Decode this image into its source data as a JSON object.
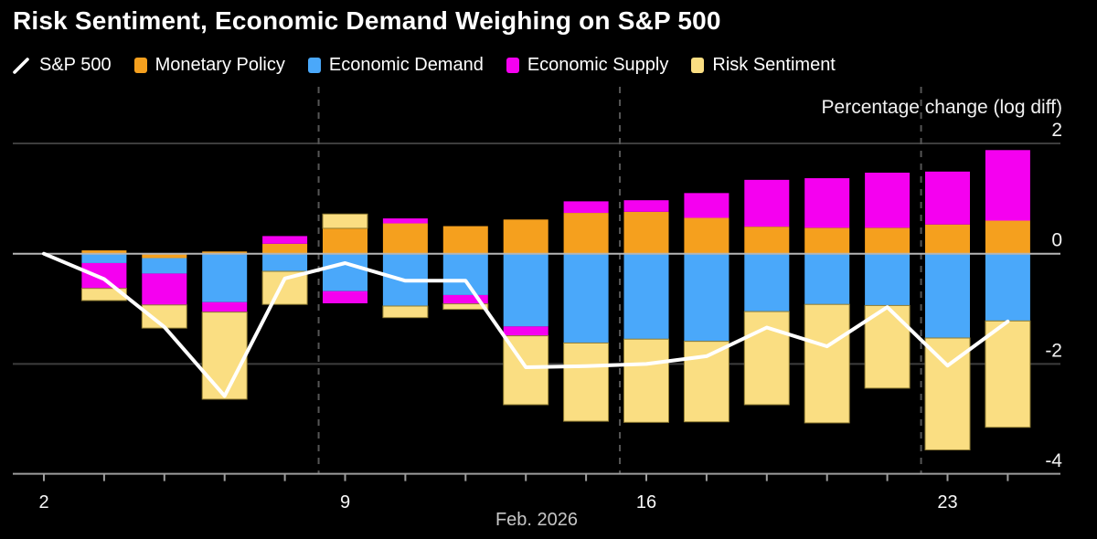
{
  "title": "Risk Sentiment, Economic Demand Weighing on S&P 500",
  "legend": {
    "items": [
      {
        "label": "S&P 500",
        "type": "line",
        "color": "#FFFFFF"
      },
      {
        "label": "Monetary Policy",
        "type": "swatch",
        "color": "#F5A01E"
      },
      {
        "label": "Economic Demand",
        "type": "swatch",
        "color": "#4AA8FA"
      },
      {
        "label": "Economic Supply",
        "type": "swatch",
        "color": "#F500F0"
      },
      {
        "label": "Risk Sentiment",
        "type": "swatch",
        "color": "#FADE82"
      }
    ]
  },
  "chart_data": {
    "type": "bar",
    "subtype": "diverging-stacked-bars-with-line-overlay",
    "unit_label": "Percentage change (log diff)",
    "background": "#000000",
    "x_axis": {
      "month_label": "Feb. 2026",
      "weekday_dates": [
        "2",
        "3",
        "4",
        "5",
        "6",
        "9",
        "10",
        "11",
        "12",
        "13",
        "16",
        "17",
        "18",
        "19",
        "20",
        "23",
        "24"
      ],
      "ticks": [
        {
          "label": "2",
          "index": 0
        },
        {
          "label": "9",
          "index": 5
        },
        {
          "label": "16",
          "index": 10
        },
        {
          "label": "23",
          "index": 15
        }
      ],
      "weekend_separators_after": [
        4,
        9,
        14
      ]
    },
    "y_axis": {
      "ticks": [
        2,
        0,
        -2,
        -4
      ],
      "range": [
        -4.35,
        2.35
      ],
      "grid": true
    },
    "series": [
      {
        "name": "Monetary Policy",
        "color": "#F5A01E",
        "values": [
          null,
          0.06,
          -0.08,
          0.04,
          0.18,
          0.46,
          0.55,
          0.5,
          0.62,
          0.74,
          0.76,
          0.65,
          0.49,
          0.47,
          0.47,
          0.53,
          0.6
        ]
      },
      {
        "name": "Economic Demand",
        "color": "#4AA8FA",
        "values": [
          null,
          -0.17,
          -0.28,
          -0.88,
          -0.32,
          -0.68,
          -0.95,
          -0.75,
          -1.32,
          -1.62,
          -1.55,
          -1.59,
          -1.05,
          -0.92,
          -0.94,
          -1.53,
          -1.22
        ]
      },
      {
        "name": "Economic Supply",
        "color": "#F500F0",
        "values": [
          null,
          -0.46,
          -0.57,
          -0.18,
          0.14,
          -0.22,
          0.09,
          -0.16,
          -0.17,
          0.21,
          0.21,
          0.45,
          0.85,
          0.9,
          1.0,
          0.96,
          1.28
        ]
      },
      {
        "name": "Risk Sentiment",
        "color": "#FADE82",
        "outline": "#8f7c33",
        "values": [
          null,
          -0.22,
          -0.42,
          -1.58,
          -0.6,
          0.26,
          -0.21,
          -0.1,
          -1.25,
          -1.42,
          -1.51,
          -1.46,
          -1.69,
          -2.15,
          -1.5,
          -2.03,
          -1.93
        ]
      }
    ],
    "line": {
      "name": "S&P 500",
      "color": "#FFFFFF",
      "values": [
        0,
        -0.46,
        -1.33,
        -2.58,
        -0.45,
        -0.17,
        -0.49,
        -0.49,
        -2.06,
        -2.04,
        -2.0,
        -1.86,
        -1.34,
        -1.68,
        -0.97,
        -2.03,
        -1.23
      ]
    },
    "grid_colors": {
      "gridline": "#3d3d3d",
      "zero_line": "#b5b5b5",
      "axis_line": "#9c9c9c",
      "weekend_dash": "#565656"
    }
  }
}
